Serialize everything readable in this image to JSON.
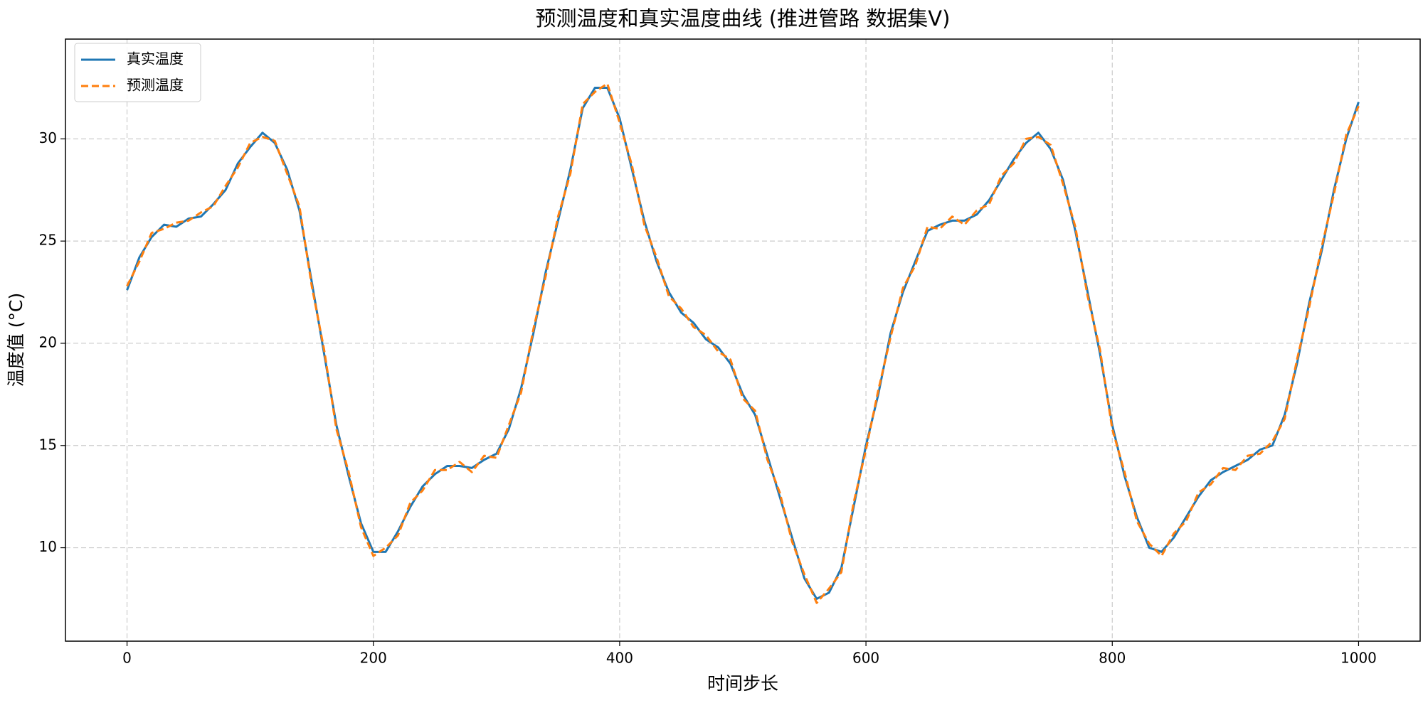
{
  "chart_data": {
    "type": "line",
    "title": "预测温度和真实温度曲线 (推进管路 数据集V)",
    "x_label": "时间步长",
    "y_label": "温度值 (°C)",
    "x": [
      0,
      10,
      20,
      30,
      40,
      50,
      60,
      70,
      80,
      90,
      100,
      110,
      120,
      130,
      140,
      150,
      160,
      170,
      180,
      190,
      200,
      210,
      220,
      230,
      240,
      250,
      260,
      270,
      280,
      290,
      300,
      310,
      320,
      330,
      340,
      350,
      360,
      370,
      380,
      390,
      400,
      410,
      420,
      430,
      440,
      450,
      460,
      470,
      480,
      490,
      500,
      510,
      520,
      530,
      540,
      550,
      560,
      570,
      580,
      590,
      600,
      610,
      620,
      630,
      640,
      650,
      660,
      670,
      680,
      690,
      700,
      710,
      720,
      730,
      740,
      750,
      760,
      770,
      780,
      790,
      800,
      810,
      820,
      830,
      840,
      850,
      860,
      870,
      880,
      890,
      900,
      910,
      920,
      930,
      940,
      950,
      960,
      970,
      980,
      990,
      1000
    ],
    "series": [
      {
        "name": "真实温度",
        "color": "#1f77b4",
        "dashed": false,
        "values": [
          22.6,
          24.2,
          25.2,
          25.8,
          25.7,
          26.1,
          26.2,
          26.8,
          27.5,
          28.8,
          29.6,
          30.3,
          29.8,
          28.5,
          26.5,
          23,
          19.5,
          16,
          13.5,
          11.2,
          9.8,
          9.8,
          10.8,
          12,
          13,
          13.6,
          14,
          14,
          13.9,
          14.3,
          14.6,
          15.8,
          17.8,
          20.5,
          23.5,
          26,
          28.5,
          31.5,
          32.5,
          32.5,
          31,
          28.5,
          26,
          24,
          22.5,
          21.5,
          21,
          20.2,
          19.8,
          19,
          17.5,
          16.5,
          14.5,
          12.5,
          10.5,
          8.5,
          7.5,
          7.8,
          9,
          12,
          15,
          17.5,
          20.5,
          22.5,
          24,
          25.5,
          25.8,
          26,
          26,
          26.3,
          27,
          28,
          29,
          29.8,
          30.3,
          29.5,
          28,
          25.5,
          22.5,
          19.5,
          16,
          13.5,
          11.5,
          10,
          9.8,
          10.5,
          11.5,
          12.5,
          13.3,
          13.7,
          14,
          14.3,
          14.8,
          15,
          16.5,
          19,
          22,
          24.5,
          27.5,
          30,
          31.8
        ]
      },
      {
        "name": "预测温度",
        "color": "#ff7f0e",
        "dashed": true,
        "values": [
          22.8,
          24.0,
          25.4,
          25.6,
          25.9,
          26.0,
          26.4,
          26.7,
          27.7,
          28.6,
          29.8,
          30.1,
          29.9,
          28.3,
          26.7,
          22.8,
          19.7,
          15.8,
          13.7,
          11.0,
          9.6,
          10.0,
          10.6,
          12.2,
          12.8,
          13.8,
          13.8,
          14.2,
          13.7,
          14.5,
          14.4,
          16.0,
          17.6,
          20.7,
          23.3,
          26.2,
          28.3,
          31.7,
          32.3,
          32.7,
          30.8,
          28.7,
          25.8,
          24.2,
          22.3,
          21.7,
          20.8,
          20.4,
          19.6,
          19.2,
          17.3,
          16.7,
          14.3,
          12.7,
          10.3,
          8.7,
          7.3,
          8.0,
          8.8,
          12.2,
          14.8,
          17.7,
          20.3,
          22.7,
          23.8,
          25.7,
          25.6,
          26.2,
          25.8,
          26.5,
          26.8,
          28.2,
          28.8,
          30.0,
          30.1,
          29.7,
          27.8,
          25.7,
          22.3,
          19.7,
          15.8,
          13.7,
          11.3,
          10.2,
          9.6,
          10.7,
          11.3,
          12.7,
          13.1,
          13.9,
          13.8,
          14.5,
          14.6,
          15.2,
          16.3,
          19.2,
          21.8,
          24.7,
          27.3,
          30.2,
          31.6
        ]
      }
    ],
    "xlim": [
      -50,
      1050
    ],
    "ylim": [
      5.43,
      34.88
    ],
    "xticks": [
      0,
      200,
      400,
      600,
      800,
      1000
    ],
    "yticks": [
      10,
      15,
      20,
      25,
      30
    ],
    "grid": true,
    "legend": "upper left"
  }
}
